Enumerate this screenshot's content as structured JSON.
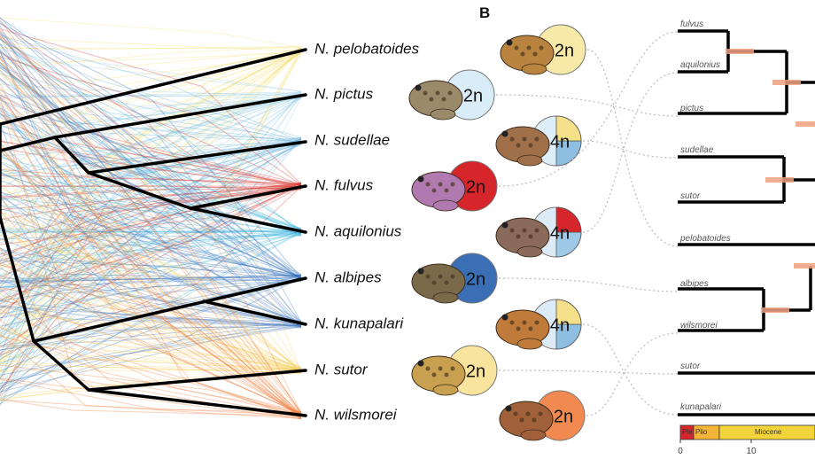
{
  "panel_label": "B",
  "species": [
    {
      "name": "N. pelobatoides",
      "ploidy": "2n"
    },
    {
      "name": "N. pictus",
      "ploidy": "2n"
    },
    {
      "name": "N. sudellae",
      "ploidy": "4n"
    },
    {
      "name": "N. fulvus",
      "ploidy": "2n"
    },
    {
      "name": "N. aquilonius",
      "ploidy": "4n"
    },
    {
      "name": "N. albipes",
      "ploidy": "2n"
    },
    {
      "name": "N. kunapalari",
      "ploidy": "4n"
    },
    {
      "name": "N. sutor",
      "ploidy": "2n"
    },
    {
      "name": "N. wilsmorei",
      "ploidy": "2n"
    }
  ],
  "right_tree": {
    "tips": [
      "fulvus",
      "aquilonius",
      "pictus",
      "sudellae",
      "sutor",
      "pelobatoides",
      "albipes",
      "wilsmorei",
      "sutor",
      "kunapalari"
    ],
    "axis_ticks": [
      "0",
      "10"
    ],
    "epochs": [
      "Ple",
      "Plio",
      "Miocene"
    ]
  }
}
